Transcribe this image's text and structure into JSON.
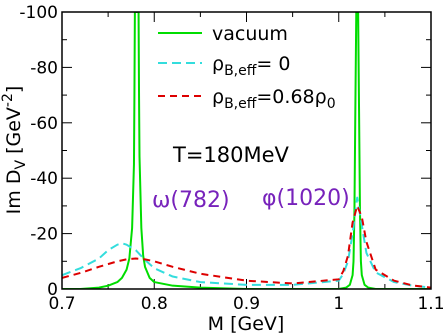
{
  "chart_data": {
    "type": "line",
    "xlabel": {
      "base": "M [GeV]"
    },
    "ylabel": {
      "base": "Im D",
      "sub": "V",
      "unit_open": " [GeV",
      "sup": "-2",
      "unit_close": "]"
    },
    "xlim": [
      0.7,
      1.1
    ],
    "ylim": [
      0,
      -100
    ],
    "y_axis_inverted": true,
    "x_ticks": [
      {
        "v": 0.7,
        "label": "0.7"
      },
      {
        "v": 0.8,
        "label": "0.8"
      },
      {
        "v": 0.9,
        "label": "0.9"
      },
      {
        "v": 1.0,
        "label": "1"
      },
      {
        "v": 1.1,
        "label": "1.1"
      }
    ],
    "y_ticks": [
      {
        "v": 0,
        "label": "0"
      },
      {
        "v": -20,
        "label": "-20"
      },
      {
        "v": -40,
        "label": "-40"
      },
      {
        "v": -60,
        "label": "-60"
      },
      {
        "v": -80,
        "label": "-80"
      },
      {
        "v": -100,
        "label": "-100"
      }
    ],
    "series": [
      {
        "name": "vacuum",
        "color": "#00dd00",
        "dash": "solid",
        "x": [
          0.7,
          0.72,
          0.74,
          0.75,
          0.76,
          0.765,
          0.77,
          0.773,
          0.776,
          0.778,
          0.7785,
          0.779,
          0.78,
          0.782,
          0.783,
          0.7835,
          0.784,
          0.786,
          0.788,
          0.79,
          0.795,
          0.8,
          0.82,
          0.85,
          0.9,
          0.95,
          1.0,
          1.008,
          1.012,
          1.015,
          1.016,
          1.017,
          1.018,
          1.019,
          1.02,
          1.021,
          1.022,
          1.023,
          1.024,
          1.025,
          1.028,
          1.032,
          1.04,
          1.06,
          1.08,
          1.1
        ],
        "y": [
          0,
          0,
          -0.5,
          -1.2,
          -2.5,
          -4,
          -7,
          -11,
          -22,
          -45,
          -70,
          -100,
          -100,
          -100,
          -100,
          -70,
          -48,
          -22,
          -12,
          -8,
          -4,
          -2.5,
          -1.2,
          -0.5,
          0,
          0,
          0,
          -0.5,
          -1.5,
          -5,
          -10,
          -28,
          -65,
          -100,
          -100,
          -100,
          -65,
          -28,
          -10,
          -5,
          -1.5,
          -0.5,
          0,
          0,
          0,
          0
        ]
      },
      {
        "name": "ρB,eff= 0",
        "color": "#33dddd",
        "dash": "long-dash",
        "x": [
          0.7,
          0.72,
          0.74,
          0.75,
          0.76,
          0.765,
          0.77,
          0.78,
          0.79,
          0.8,
          0.82,
          0.85,
          0.9,
          0.95,
          1.0,
          1.005,
          1.01,
          1.015,
          1.02,
          1.025,
          1.03,
          1.04,
          1.06,
          1.08,
          1.1
        ],
        "y": [
          -5,
          -7.5,
          -11,
          -14,
          -16,
          -16.5,
          -16,
          -14,
          -10.5,
          -7.5,
          -4.5,
          -2.5,
          -1.5,
          -1.5,
          -3,
          -5.5,
          -10,
          -20,
          -33,
          -23,
          -13,
          -6,
          -2.5,
          -1.2,
          -0.5
        ]
      },
      {
        "name": "ρB,eff=0.68ρ0",
        "color": "#dd0000",
        "dash": "dash",
        "x": [
          0.7,
          0.72,
          0.74,
          0.76,
          0.77,
          0.78,
          0.79,
          0.8,
          0.82,
          0.85,
          0.9,
          0.95,
          1.0,
          1.005,
          1.01,
          1.015,
          1.02,
          1.025,
          1.03,
          1.04,
          1.06,
          1.08,
          1.1
        ],
        "y": [
          -4,
          -5.8,
          -8,
          -10,
          -10.7,
          -11,
          -10.7,
          -10,
          -8,
          -5.5,
          -3,
          -2,
          -3.5,
          -6.5,
          -12,
          -24,
          -30,
          -26,
          -17,
          -7,
          -3,
          -1.3,
          -0.5
        ]
      }
    ],
    "legend": {
      "position": "top-center",
      "entries": [
        {
          "series": "vacuum",
          "label": {
            "base": "vacuum"
          }
        },
        {
          "series": "ρB,eff= 0",
          "label": {
            "base": "ρ",
            "sub": "B,eff",
            "tail": "= 0"
          }
        },
        {
          "series": "ρB,eff=0.68ρ0",
          "label": {
            "base": "ρ",
            "sub": "B,eff",
            "tail": "=0.68ρ",
            "sub2": "0"
          }
        }
      ]
    },
    "annotations": [
      {
        "text": "T=180MeV",
        "color": "#000000"
      },
      {
        "text": "ω(782)",
        "color": "#7722bb"
      },
      {
        "text": "φ(1020)",
        "color": "#7722bb"
      }
    ]
  }
}
